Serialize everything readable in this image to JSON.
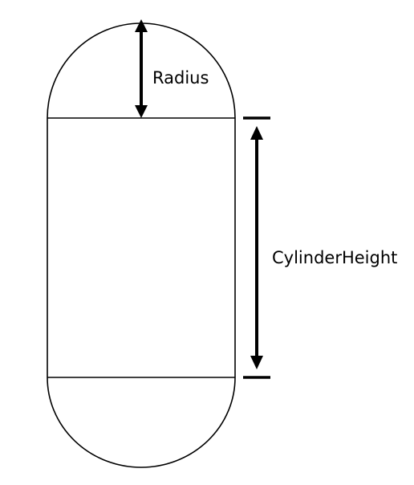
{
  "labels": {
    "radius": "Radius",
    "cylinder_height": "CylinderHeight"
  },
  "colors": {
    "stroke": "#000000",
    "background": "#ffffff"
  }
}
